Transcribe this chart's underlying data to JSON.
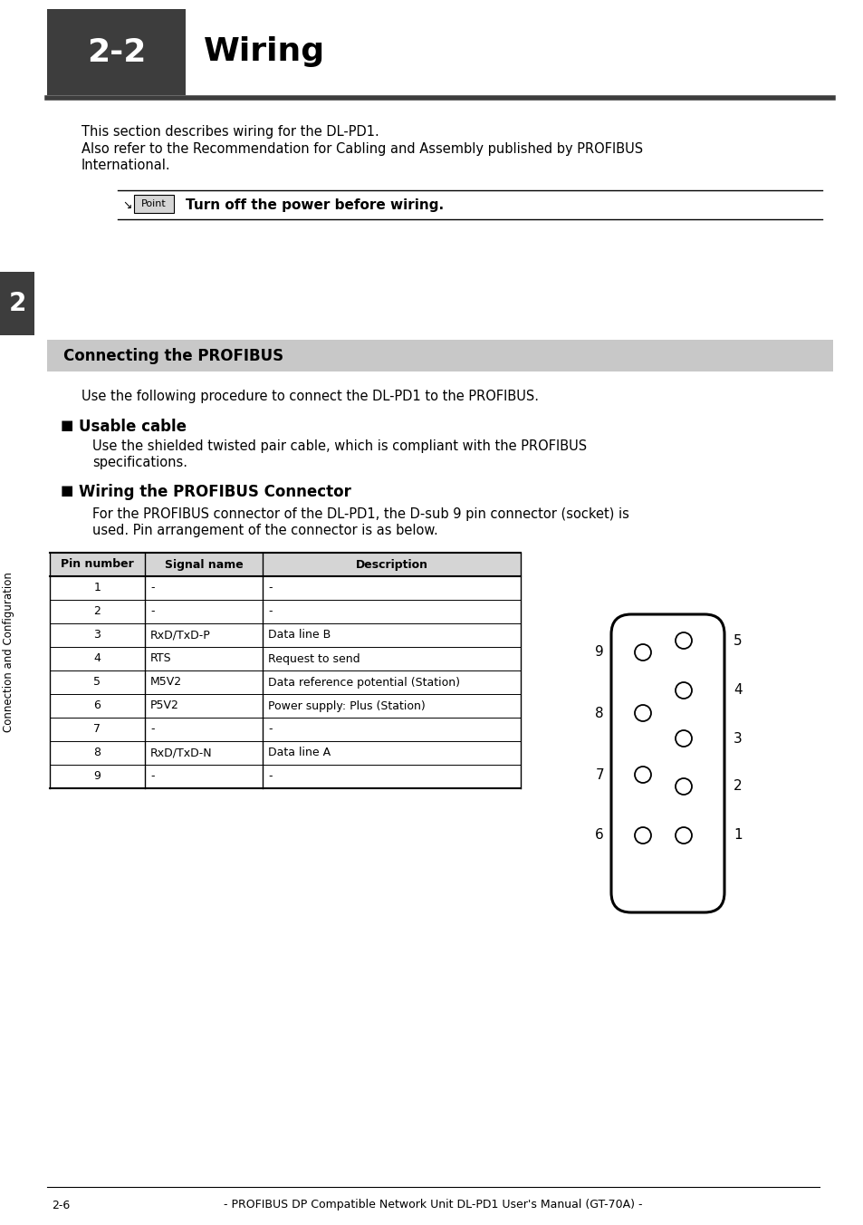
{
  "page_bg": "#ffffff",
  "header_bg": "#3d3d3d",
  "header_text": "2-2",
  "header_title": "Wiring",
  "section_bar_bg": "#c8c8c8",
  "section_title": "Connecting the PROFIBUS",
  "intro_text1": "This section describes wiring for the DL-PD1.",
  "intro_text2": "Also refer to the Recommendation for Cabling and Assembly published by PROFIBUS\nInternational.",
  "point_text": "Turn off the power before wiring.",
  "usable_cable_title": "Usable cable",
  "usable_cable_text": "Use the shielded twisted pair cable, which is compliant with the PROFIBUS\nspecifications.",
  "wiring_title": "Wiring the PROFIBUS Connector",
  "wiring_text": "For the PROFIBUS connector of the DL-PD1, the D-sub 9 pin connector (socket) is\nused. Pin arrangement of the connector is as below.",
  "proc_text": "Use the following procedure to connect the DL-PD1 to the PROFIBUS.",
  "table_headers": [
    "Pin number",
    "Signal name",
    "Description"
  ],
  "table_rows": [
    [
      "1",
      "-",
      "-"
    ],
    [
      "2",
      "-",
      "-"
    ],
    [
      "3",
      "RxD/TxD-P",
      "Data line B"
    ],
    [
      "4",
      "RTS",
      "Request to send"
    ],
    [
      "5",
      "M5V2",
      "Data reference potential (Station)"
    ],
    [
      "6",
      "P5V2",
      "Power supply: Plus (Station)"
    ],
    [
      "7",
      "-",
      "-"
    ],
    [
      "8",
      "RxD/TxD-N",
      "Data line A"
    ],
    [
      "9",
      "-",
      "-"
    ]
  ],
  "side_label": "Connection and Configuration",
  "chapter_num": "2",
  "footer_text": "- PROFIBUS DP Compatible Network Unit DL-PD1 User's Manual (GT-70A) -",
  "page_num": "2-6",
  "left_pin_labels": [
    "9",
    "8",
    "7",
    "6"
  ],
  "right_pin_labels": [
    "5",
    "4",
    "3",
    "2",
    "1"
  ]
}
